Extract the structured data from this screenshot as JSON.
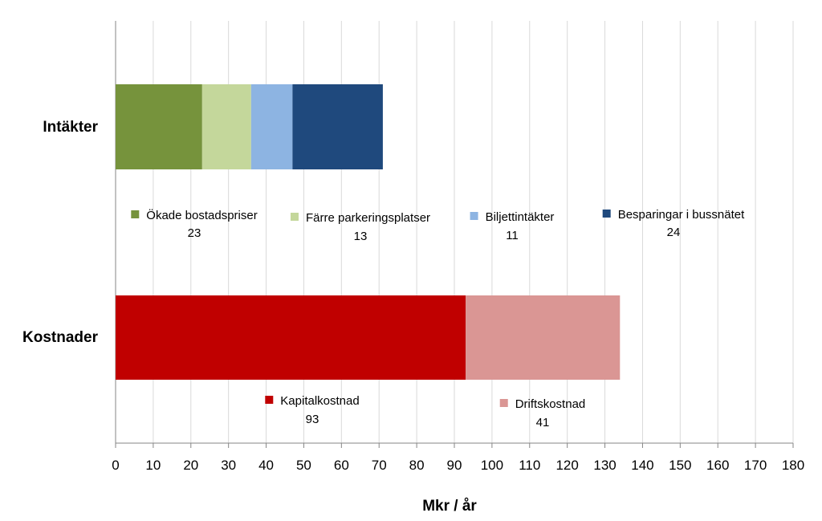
{
  "chart_data": {
    "type": "bar",
    "orientation": "horizontal",
    "stacked": true,
    "title": "",
    "xlabel": "Mkr / år",
    "ylabel": "",
    "xlim": [
      0,
      180
    ],
    "xticks": [
      "0",
      "10",
      "20",
      "30",
      "40",
      "50",
      "60",
      "70",
      "80",
      "90",
      "100",
      "110",
      "120",
      "130",
      "140",
      "150",
      "160",
      "170",
      "180"
    ],
    "grid": true,
    "categories": [
      {
        "name": "Intäkter",
        "segments": [
          {
            "name": "Ökade bostadspriser",
            "value": 23,
            "color": "#76933c"
          },
          {
            "name": "Färre parkeringsplatser",
            "value": 13,
            "color": "#c4d79b"
          },
          {
            "name": "Biljettintäkter",
            "value": 11,
            "color": "#8db4e2"
          },
          {
            "name": "Besparingar i bussnätet",
            "value": 24,
            "color": "#1f497d"
          }
        ]
      },
      {
        "name": "Kostnader",
        "segments": [
          {
            "name": "Kapitalkostnad",
            "value": 93,
            "color": "#c00000"
          },
          {
            "name": "Driftskostnad",
            "value": 41,
            "color": "#da9694"
          }
        ]
      }
    ]
  }
}
